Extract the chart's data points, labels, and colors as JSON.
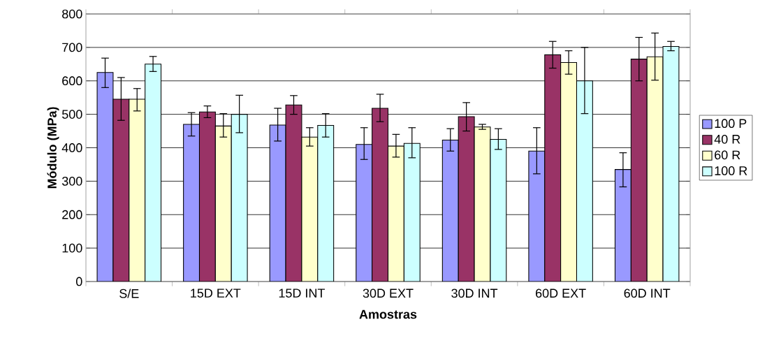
{
  "chart_data": {
    "type": "bar",
    "xlabel": "Amostras",
    "ylabel": "Módulo (MPa)",
    "categories": [
      "S/E",
      "15D EXT",
      "15D INT",
      "30D EXT",
      "30D INT",
      "60D EXT",
      "60D INT"
    ],
    "series": [
      {
        "name": "100 P",
        "color": "#9999ff",
        "values": [
          625,
          470,
          468,
          410,
          423,
          390,
          335
        ],
        "errors": [
          [
            580,
            668
          ],
          [
            435,
            505
          ],
          [
            420,
            518
          ],
          [
            365,
            460
          ],
          [
            390,
            457
          ],
          [
            322,
            460
          ],
          [
            283,
            385
          ]
        ]
      },
      {
        "name": "40 R",
        "color": "#993366",
        "values": [
          545,
          507,
          528,
          518,
          493,
          678,
          665
        ],
        "errors": [
          [
            482,
            610
          ],
          [
            490,
            525
          ],
          [
            500,
            556
          ],
          [
            478,
            560
          ],
          [
            450,
            535
          ],
          [
            638,
            718
          ],
          [
            600,
            730
          ]
        ]
      },
      {
        "name": "60 R",
        "color": "#ffffcc",
        "values": [
          545,
          465,
          432,
          405,
          462,
          655,
          672
        ],
        "errors": [
          [
            510,
            577
          ],
          [
            432,
            502
          ],
          [
            405,
            460
          ],
          [
            372,
            440
          ],
          [
            455,
            470
          ],
          [
            620,
            690
          ],
          [
            602,
            743
          ]
        ]
      },
      {
        "name": "100 R",
        "color": "#ccffff",
        "values": [
          650,
          500,
          467,
          413,
          425,
          600,
          703
        ],
        "errors": [
          [
            628,
            673
          ],
          [
            445,
            557
          ],
          [
            432,
            502
          ],
          [
            370,
            460
          ],
          [
            395,
            457
          ],
          [
            502,
            700
          ],
          [
            690,
            718
          ]
        ]
      }
    ],
    "ylim": [
      0,
      800
    ],
    "yticks": [
      0,
      100,
      200,
      300,
      400,
      500,
      600,
      700,
      800
    ],
    "grid": "y",
    "legend": "right"
  }
}
